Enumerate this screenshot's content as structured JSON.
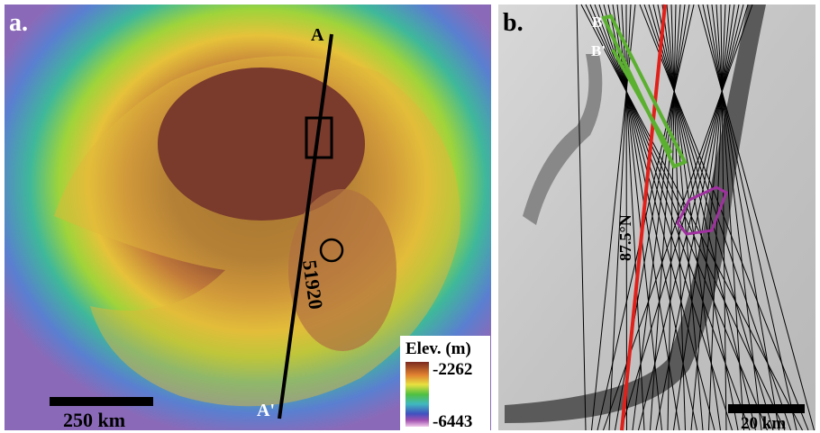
{
  "panels": [
    {
      "label": "a.",
      "profile_start": "A",
      "profile_end": "A'",
      "track": "51920",
      "scale_bar": "250 km",
      "legend": {
        "title": "Elev. (m)",
        "max": "-2262",
        "min": "-6443"
      }
    },
    {
      "label": "b.",
      "profile_start": "B",
      "profile_end": "B'",
      "latitude": "87.5°N",
      "scale_bar": "20 km"
    }
  ]
}
